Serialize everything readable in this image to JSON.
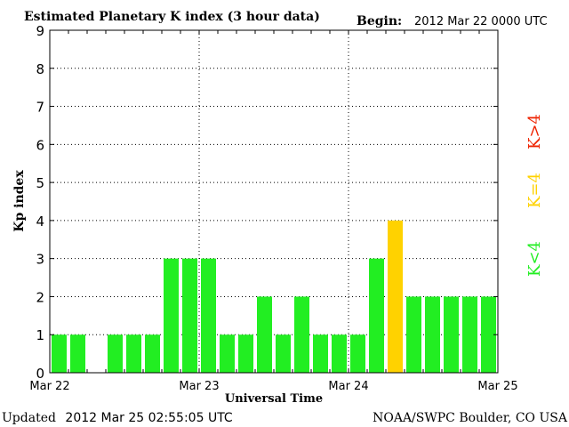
{
  "chart_data": {
    "type": "bar",
    "title": "Estimated Planetary K index (3 hour data)",
    "begin_label": "Begin:",
    "begin_value": "2012 Mar 22 0000 UTC",
    "ylabel": "Kp index",
    "xlabel": "Universal Time",
    "ylim": [
      0,
      9
    ],
    "yticks": [
      "0",
      "1",
      "2",
      "3",
      "4",
      "5",
      "6",
      "7",
      "8",
      "9"
    ],
    "xticks": [
      "Mar 22",
      "Mar 23",
      "Mar 24",
      "Mar 25"
    ],
    "values": [
      1,
      1,
      0,
      1,
      1,
      1,
      3,
      3,
      3,
      1,
      1,
      2,
      1,
      2,
      1,
      1,
      1,
      3,
      4,
      2,
      2,
      2,
      2,
      2
    ],
    "grid": true,
    "legend": [
      {
        "text": "K<4",
        "color": "#22ee22"
      },
      {
        "text": "K=4",
        "color": "#ffd200"
      },
      {
        "text": "K>4",
        "color": "#ee2200"
      }
    ],
    "colors": {
      "low": "#22ee22",
      "mid": "#ffd200",
      "high": "#ee2200"
    }
  },
  "footer": {
    "updated_label": "Updated",
    "updated_value": "2012 Mar 25 02:55:05 UTC",
    "credit": "NOAA/SWPC Boulder, CO USA"
  }
}
